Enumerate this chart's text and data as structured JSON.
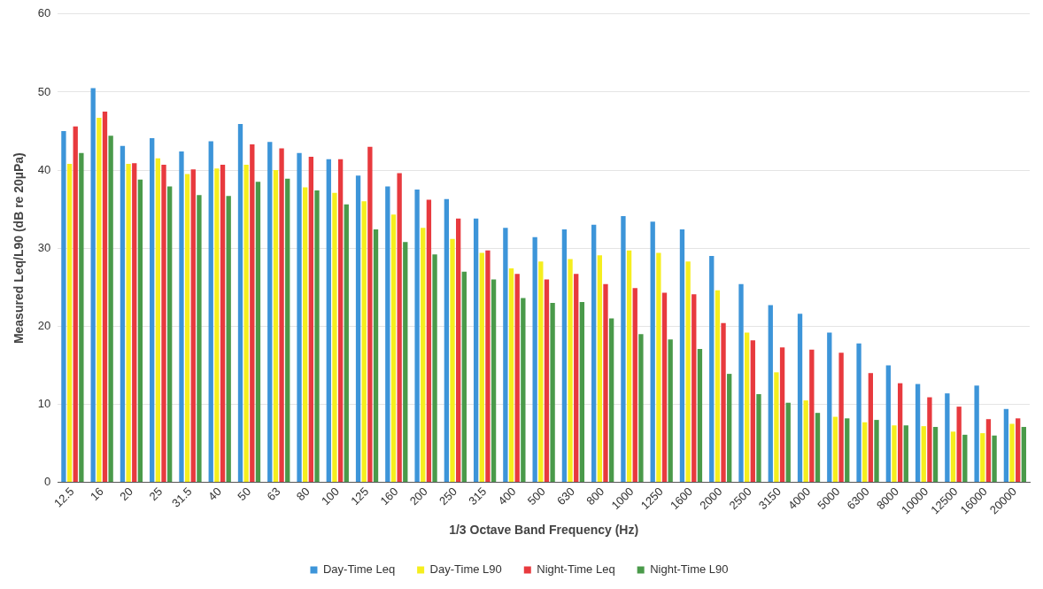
{
  "chart_data": {
    "type": "bar",
    "xlabel": "1/3 Octave Band Frequency (Hz)",
    "ylabel": "Measured Leq/L90 (dB re 20µPa)",
    "categories": [
      "12.5",
      "16",
      "20",
      "25",
      "31.5",
      "40",
      "50",
      "63",
      "80",
      "100",
      "125",
      "160",
      "200",
      "250",
      "315",
      "400",
      "500",
      "630",
      "800",
      "1000",
      "1250",
      "1600",
      "2000",
      "2500",
      "3150",
      "4000",
      "5000",
      "6300",
      "8000",
      "10000",
      "12500",
      "16000",
      "20000"
    ],
    "series": [
      {
        "name": "Day-Time Leq",
        "color": "#3d95d9",
        "values": [
          45.0,
          50.5,
          43.1,
          44.1,
          42.4,
          43.7,
          45.9,
          43.6,
          42.2,
          41.4,
          39.3,
          37.9,
          37.5,
          36.3,
          33.8,
          32.6,
          31.4,
          32.4,
          33.0,
          34.1,
          33.4,
          32.4,
          29.0,
          25.4,
          22.7,
          21.6,
          19.2,
          17.8,
          15.0,
          12.6,
          11.4,
          12.4,
          9.4
        ]
      },
      {
        "name": "Day-Time L90",
        "color": "#f5ee1e",
        "values": [
          40.8,
          46.7,
          40.8,
          41.5,
          39.5,
          40.2,
          40.7,
          40.0,
          37.8,
          37.1,
          36.0,
          34.3,
          32.6,
          31.2,
          29.4,
          27.4,
          28.3,
          28.6,
          29.1,
          29.7,
          29.4,
          28.3,
          24.6,
          19.2,
          14.1,
          10.5,
          8.4,
          7.7,
          7.3,
          7.2,
          6.5,
          6.3,
          7.5
        ]
      },
      {
        "name": "Night-Time Leq",
        "color": "#e83a3e",
        "values": [
          45.6,
          47.5,
          40.9,
          40.7,
          40.1,
          40.7,
          43.3,
          42.8,
          41.7,
          41.4,
          43.0,
          39.6,
          36.2,
          33.8,
          29.7,
          26.7,
          26.0,
          26.7,
          25.4,
          24.9,
          24.3,
          24.1,
          20.4,
          18.2,
          17.3,
          17.0,
          16.6,
          14.0,
          12.7,
          10.9,
          9.7,
          8.1,
          8.2
        ]
      },
      {
        "name": "Night-Time L90",
        "color": "#4a9a4a",
        "values": [
          42.2,
          44.4,
          38.8,
          37.9,
          36.8,
          36.7,
          38.5,
          38.9,
          37.4,
          35.6,
          32.4,
          30.8,
          29.2,
          27.0,
          26.0,
          23.6,
          23.0,
          23.1,
          21.0,
          19.0,
          18.3,
          17.1,
          13.9,
          11.3,
          10.2,
          8.9,
          8.2,
          8.0,
          7.3,
          7.1,
          6.1,
          6.0,
          7.1
        ]
      }
    ],
    "ylim": [
      0,
      60
    ],
    "yticks": [
      0,
      10,
      20,
      30,
      40,
      50,
      60
    ],
    "grid": "y",
    "legend": "bottom"
  }
}
